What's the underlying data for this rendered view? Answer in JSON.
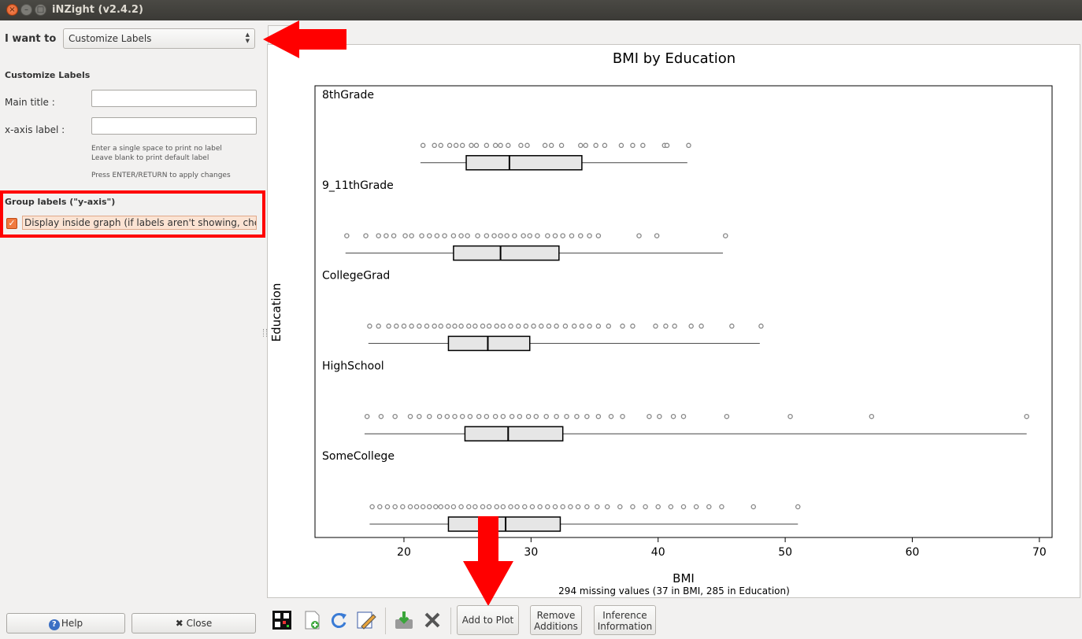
{
  "window": {
    "title": "iNZight (v2.4.2)",
    "close_glyph": "×",
    "min_glyph": "–",
    "max_glyph": "□"
  },
  "left_panel": {
    "i_want_label": "I want to",
    "mode_value": "Customize Labels",
    "section_title": "Customize Labels",
    "main_title_label": "Main title :",
    "main_title_value": "",
    "xaxis_label_label": "x-axis label :",
    "xaxis_label_value": "",
    "hint_1": "Enter a single space to print no label",
    "hint_2": "Leave blank to print default label",
    "hint_3": "Press ENTER/RETURN to apply changes",
    "group_section_title": "Group labels (\"y-axis\")",
    "checkbox_label": "Display inside graph (if labels aren't showing, check",
    "checkbox_checked": true,
    "help_label": "Help",
    "close_label": "Close"
  },
  "toolbar": {
    "add_to_plot": "Add to Plot",
    "remove_additions": [
      "Remove",
      "Additions"
    ],
    "inference_information": [
      "Inference",
      "Information"
    ]
  },
  "colors": {
    "annotation_red": "#ff0000",
    "box_fill": "#e6e6e6",
    "point_stroke": "#888888"
  },
  "chart_data": {
    "type": "box-dot",
    "title": "BMI by Education",
    "xlabel": "BMI",
    "ylabel": "Education",
    "subtitle": "294 missing values (37 in BMI, 285 in Education)",
    "xlim": [
      13,
      71
    ],
    "xticks": [
      20,
      30,
      40,
      50,
      60,
      70
    ],
    "groups": [
      {
        "name": "8thGrade",
        "min": 21.3,
        "q1": 24.9,
        "median": 28.3,
        "q3": 34.0,
        "max": 42.3,
        "points": [
          21.5,
          22.4,
          22.9,
          23.6,
          24.1,
          24.6,
          25.3,
          25.7,
          26.5,
          27.2,
          27.6,
          28.2,
          29.2,
          29.7,
          31.1,
          31.6,
          32.4,
          33.9,
          34.3,
          35.1,
          35.8,
          37.1,
          38.0,
          38.8,
          40.5,
          40.7,
          42.4
        ]
      },
      {
        "name": "9_11thGrade",
        "min": 15.4,
        "q1": 23.9,
        "median": 27.6,
        "q3": 32.2,
        "max": 45.1,
        "points": [
          15.5,
          17.0,
          18.0,
          18.6,
          19.2,
          20.1,
          20.6,
          21.4,
          22.0,
          22.6,
          23.2,
          23.9,
          24.5,
          25.0,
          25.8,
          26.5,
          27.1,
          27.6,
          28.1,
          28.7,
          29.4,
          29.9,
          30.5,
          31.3,
          31.9,
          32.5,
          33.2,
          33.9,
          34.6,
          35.3,
          38.5,
          39.9,
          45.3
        ]
      },
      {
        "name": "CollegeGrad",
        "min": 17.2,
        "q1": 23.5,
        "median": 26.6,
        "q3": 29.9,
        "max": 48.0,
        "points": [
          17.3,
          18.0,
          18.8,
          19.4,
          20.0,
          20.6,
          21.2,
          21.8,
          22.4,
          22.9,
          23.5,
          24.0,
          24.5,
          25.1,
          25.6,
          26.2,
          26.7,
          27.3,
          27.8,
          28.4,
          29.0,
          29.6,
          30.2,
          30.8,
          31.4,
          32.0,
          32.7,
          33.4,
          34.0,
          34.6,
          35.3,
          36.1,
          37.2,
          38.0,
          39.8,
          40.6,
          41.3,
          42.6,
          43.4,
          45.8,
          48.1
        ]
      },
      {
        "name": "HighSchool",
        "min": 16.9,
        "q1": 24.8,
        "median": 28.2,
        "q3": 32.5,
        "max": 69.0,
        "points": [
          17.1,
          18.2,
          19.3,
          20.5,
          21.2,
          22.0,
          22.8,
          23.4,
          24.0,
          24.6,
          25.2,
          25.9,
          26.5,
          27.2,
          27.8,
          28.5,
          29.1,
          29.8,
          30.4,
          31.2,
          32.0,
          32.8,
          33.6,
          34.4,
          35.3,
          36.3,
          37.2,
          39.3,
          40.1,
          41.2,
          42.0,
          45.4,
          50.4,
          56.8,
          69.0
        ]
      },
      {
        "name": "SomeCollege",
        "min": 17.3,
        "q1": 23.5,
        "median": 28.0,
        "q3": 32.3,
        "max": 51.0,
        "points": [
          17.5,
          18.1,
          18.7,
          19.3,
          19.9,
          20.5,
          21.0,
          21.5,
          22.0,
          22.5,
          22.9,
          23.4,
          23.9,
          24.5,
          25.1,
          25.6,
          26.2,
          26.7,
          27.3,
          27.8,
          28.4,
          28.9,
          29.5,
          30.1,
          30.7,
          31.3,
          31.9,
          32.5,
          33.1,
          33.7,
          34.4,
          35.2,
          36.0,
          37.0,
          38.0,
          39.0,
          40.0,
          41.0,
          42.0,
          43.0,
          44.0,
          45.0,
          47.5,
          51.0
        ]
      }
    ]
  }
}
